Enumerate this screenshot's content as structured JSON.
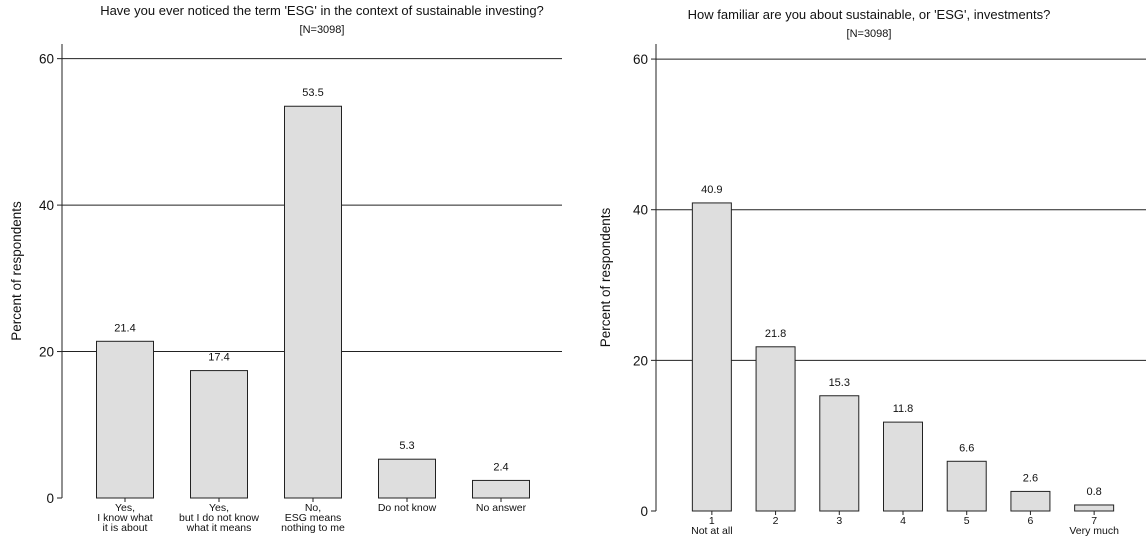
{
  "chart_data": [
    {
      "type": "bar",
      "title": "Have you ever noticed the term 'ESG' in the context of sustainable investing?",
      "subtitle": "[N=3098]",
      "xlabel": "",
      "ylabel": "Percent of respondents",
      "ylim": [
        0,
        62
      ],
      "yticks": [
        0,
        20,
        40,
        60
      ],
      "grid": true,
      "categories": [
        [
          "Yes,",
          "I know what",
          "it is about"
        ],
        [
          "Yes,",
          "but I do not know",
          "what it means"
        ],
        [
          "No,",
          "ESG means",
          "nothing to me"
        ],
        [
          "Do not know"
        ],
        [
          "No answer"
        ]
      ],
      "values": [
        21.4,
        17.4,
        53.5,
        5.3,
        2.4
      ],
      "value_labels": [
        "21.4",
        "17.4",
        "53.5",
        "5.3",
        "2.4"
      ]
    },
    {
      "type": "bar",
      "title": "How familiar are you about sustainable, or 'ESG', investments?",
      "subtitle": "[N=3098]",
      "xlabel": "",
      "ylabel": "Percent of respondents",
      "ylim": [
        0,
        62
      ],
      "yticks": [
        0,
        20,
        40,
        60
      ],
      "grid": true,
      "categories": [
        [
          "1",
          "Not at all"
        ],
        [
          "2"
        ],
        [
          "3"
        ],
        [
          "4"
        ],
        [
          "5"
        ],
        [
          "6"
        ],
        [
          "7",
          "Very much"
        ]
      ],
      "values": [
        40.9,
        21.8,
        15.3,
        11.8,
        6.6,
        2.6,
        0.8
      ],
      "value_labels": [
        "40.9",
        "21.8",
        "15.3",
        "11.8",
        "6.6",
        "2.6",
        "0.8"
      ]
    }
  ]
}
